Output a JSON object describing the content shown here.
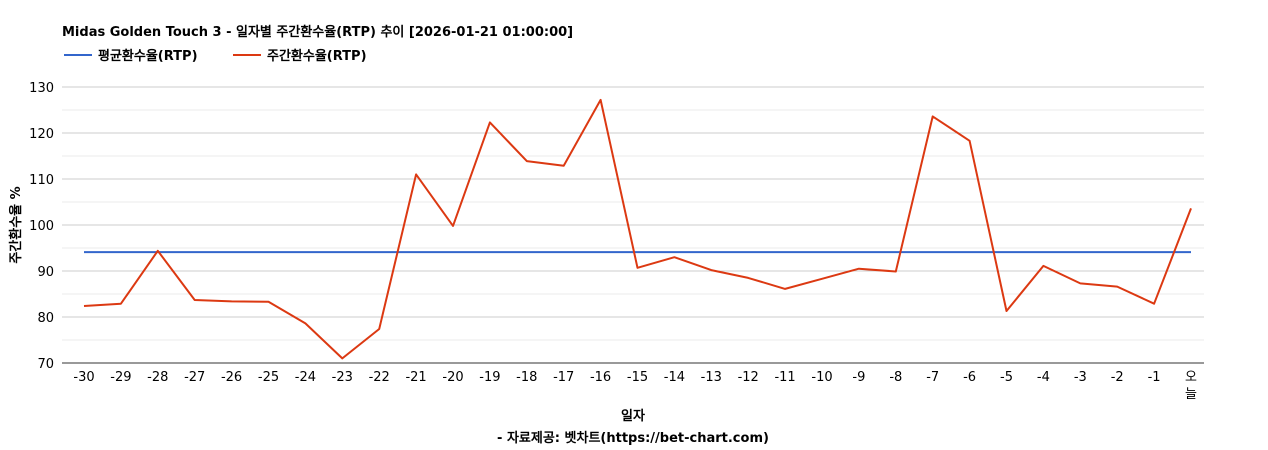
{
  "chart_data": {
    "type": "line",
    "title": "Midas Golden Touch 3 - 일자별 주간환수율(RTP) 추이 [2026-01-21 01:00:00]",
    "xlabel": "일자",
    "ylabel": "주간환수율 %",
    "source": "- 자료제공: 벳차트(https://bet-chart.com)",
    "ylim": [
      70,
      130
    ],
    "yticks": [
      70,
      80,
      90,
      100,
      110,
      120,
      130
    ],
    "grid": true,
    "legend_position": "top-left",
    "categories": [
      "-30",
      "-29",
      "-28",
      "-27",
      "-26",
      "-25",
      "-24",
      "-23",
      "-22",
      "-21",
      "-20",
      "-19",
      "-18",
      "-17",
      "-16",
      "-15",
      "-14",
      "-13",
      "-12",
      "-11",
      "-10",
      "-9",
      "-8",
      "-7",
      "-6",
      "-5",
      "-4",
      "-3",
      "-2",
      "-1",
      "오늘"
    ],
    "series": [
      {
        "name": "평균환수율(RTP)",
        "color": "#3366cc",
        "values": [
          94.1,
          94.1,
          94.1,
          94.1,
          94.1,
          94.1,
          94.1,
          94.1,
          94.1,
          94.1,
          94.1,
          94.1,
          94.1,
          94.1,
          94.1,
          94.1,
          94.1,
          94.1,
          94.1,
          94.1,
          94.1,
          94.1,
          94.1,
          94.1,
          94.1,
          94.1,
          94.1,
          94.1,
          94.1,
          94.1,
          94.1
        ]
      },
      {
        "name": "주간환수율(RTP)",
        "color": "#dc3912",
        "values": [
          82.4,
          82.9,
          94.4,
          83.7,
          83.4,
          83.3,
          78.6,
          71.0,
          77.4,
          111.0,
          99.8,
          122.3,
          113.9,
          112.9,
          127.2,
          90.7,
          93.0,
          90.2,
          88.5,
          86.1,
          88.3,
          90.5,
          89.9,
          123.6,
          118.3,
          81.3,
          91.1,
          87.3,
          86.6,
          82.9,
          103.6
        ]
      }
    ]
  }
}
